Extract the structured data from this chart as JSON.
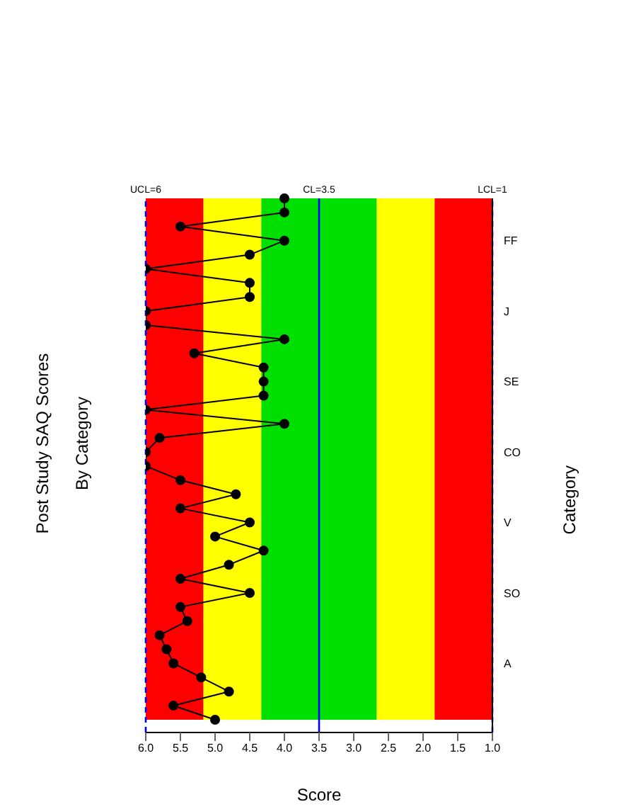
{
  "chart_data": {
    "type": "line",
    "orientation": "horizontal",
    "title": "Post Study SAQ Scores",
    "subtitle": "By Category",
    "xlabel": "Score",
    "ylabel": "Category",
    "categories": [
      null,
      null,
      null,
      "FF",
      null,
      null,
      null,
      null,
      "J",
      null,
      null,
      null,
      null,
      "SE",
      null,
      null,
      null,
      null,
      "CO",
      null,
      null,
      null,
      null,
      "V",
      null,
      null,
      null,
      null,
      "SO",
      null,
      null,
      null,
      null,
      "A",
      null,
      null,
      null,
      null
    ],
    "series": [
      {
        "color": "#000000",
        "values": [
          4.0,
          4.0,
          5.5,
          4.0,
          4.5,
          6.0,
          4.5,
          4.5,
          6.0,
          6.0,
          4.0,
          5.3,
          4.3,
          4.3,
          4.3,
          6.0,
          4.0,
          5.8,
          6.0,
          6.0,
          5.5,
          4.7,
          5.5,
          4.5,
          5.0,
          4.3,
          4.8,
          5.5,
          4.5,
          5.5,
          5.4,
          5.8,
          5.7,
          5.6,
          5.2,
          4.8,
          5.6,
          5.0
        ]
      }
    ],
    "xlim": [
      6,
      1
    ],
    "xticks": [
      {
        "value": 6,
        "label": "6.0"
      },
      {
        "value": 5.5,
        "label": "5.5"
      },
      {
        "value": 5,
        "label": "5.0"
      },
      {
        "value": 4.5,
        "label": "4.5"
      },
      {
        "value": 4,
        "label": "4.0"
      },
      {
        "value": 3.5,
        "label": "3.5"
      },
      {
        "value": 3,
        "label": "3.0"
      },
      {
        "value": 2.5,
        "label": "2.5"
      },
      {
        "value": 2,
        "label": "2.0"
      },
      {
        "value": 1.5,
        "label": "1.5"
      },
      {
        "value": 1,
        "label": "1.0"
      }
    ],
    "bands": [
      {
        "axis": "x",
        "from": 5.167,
        "to": 6,
        "color": "#ff0000"
      },
      {
        "axis": "x",
        "from": 4.333,
        "to": 5.167,
        "color": "#ffff00"
      },
      {
        "axis": "x",
        "from": 2.667,
        "to": 4.333,
        "color": "#00e000"
      },
      {
        "axis": "x",
        "from": 1.833,
        "to": 2.667,
        "color": "#ffff00"
      },
      {
        "axis": "x",
        "from": 1,
        "to": 1.833,
        "color": "#ff0000"
      }
    ],
    "ref_lines": [
      {
        "axis": "x",
        "value": 6,
        "label": "UCL=6",
        "color": "#0000ff",
        "line_style": "dashed"
      },
      {
        "axis": "x",
        "value": 3.5,
        "label": "CL=3.5",
        "color": "#0000ff",
        "line_style": "solid"
      },
      {
        "axis": "x",
        "value": 1,
        "label": "LCL=1",
        "color": "#0000ff",
        "line_style": "dashed"
      }
    ],
    "grid": false,
    "marker": "circle"
  }
}
